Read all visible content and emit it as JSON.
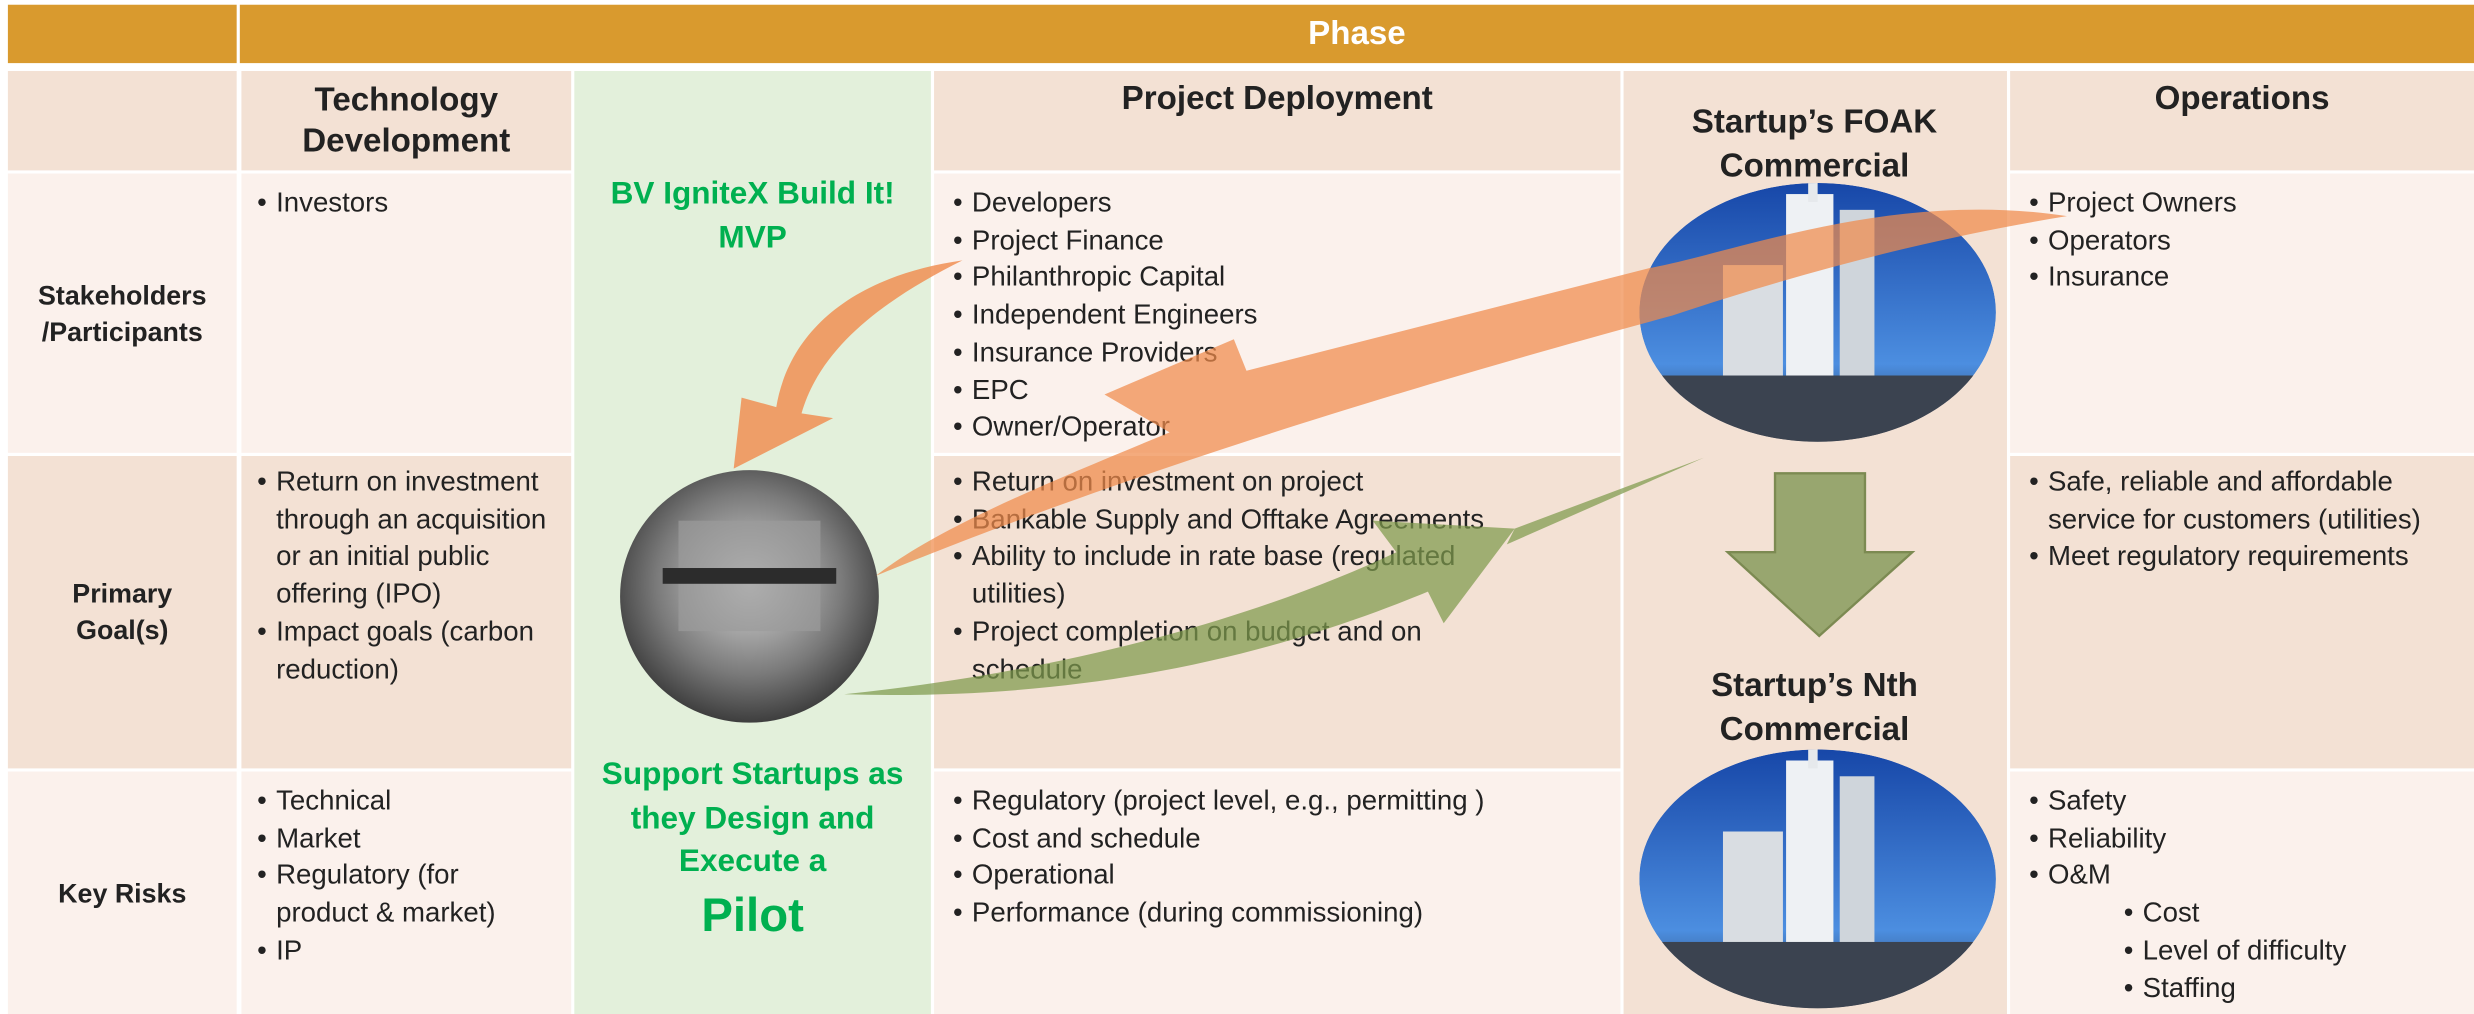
{
  "header": {
    "phase": "Phase"
  },
  "columns": {
    "tech": "Technology Development",
    "deployment": "Project Deployment",
    "operations": "Operations"
  },
  "ignitex": {
    "top": "BV IgniteX Build It! MVP",
    "bottom": "Support Startups as they Design and Execute a",
    "bottom_emphasis": "Pilot"
  },
  "foak": {
    "title": "Startup’s FOAK Commercial"
  },
  "nth": {
    "title": "Startup’s Nth Commercial"
  },
  "rows": [
    {
      "label": "Stakeholders /Participants",
      "tech": [
        "Investors"
      ],
      "deployment": [
        "Developers",
        "Project Finance",
        "Philanthropic Capital",
        "Independent Engineers",
        "Insurance Providers",
        "EPC",
        "Owner/Operator"
      ],
      "operations": [
        "Project Owners",
        "Operators",
        "Insurance"
      ]
    },
    {
      "label": "Primary Goal(s)",
      "tech": [
        "Return on investment through an acquisition or an initial public offering (IPO)",
        "Impact goals (carbon reduction)"
      ],
      "deployment": [
        "Return on investment on project",
        "Bankable Supply and Offtake Agreements",
        "Ability to include in rate base (regulated utilities)",
        "Project completion on budget and on schedule"
      ],
      "operations": [
        "Safe, reliable and affordable service for customers (utilities)",
        "Meet regulatory requirements"
      ]
    },
    {
      "label": "Key Risks",
      "tech": [
        "Technical",
        "Market",
        "Regulatory (for product & market)",
        "IP"
      ],
      "deployment": [
        "Regulatory (project level, e.g., permitting )",
        "Cost and schedule",
        "Operational",
        "Performance (during commissioning)"
      ],
      "operations": [
        "Safety",
        "Reliability",
        "O&M"
      ],
      "operations_sub": [
        "Cost",
        "Level of difficulty",
        "Staffing"
      ]
    }
  ]
}
